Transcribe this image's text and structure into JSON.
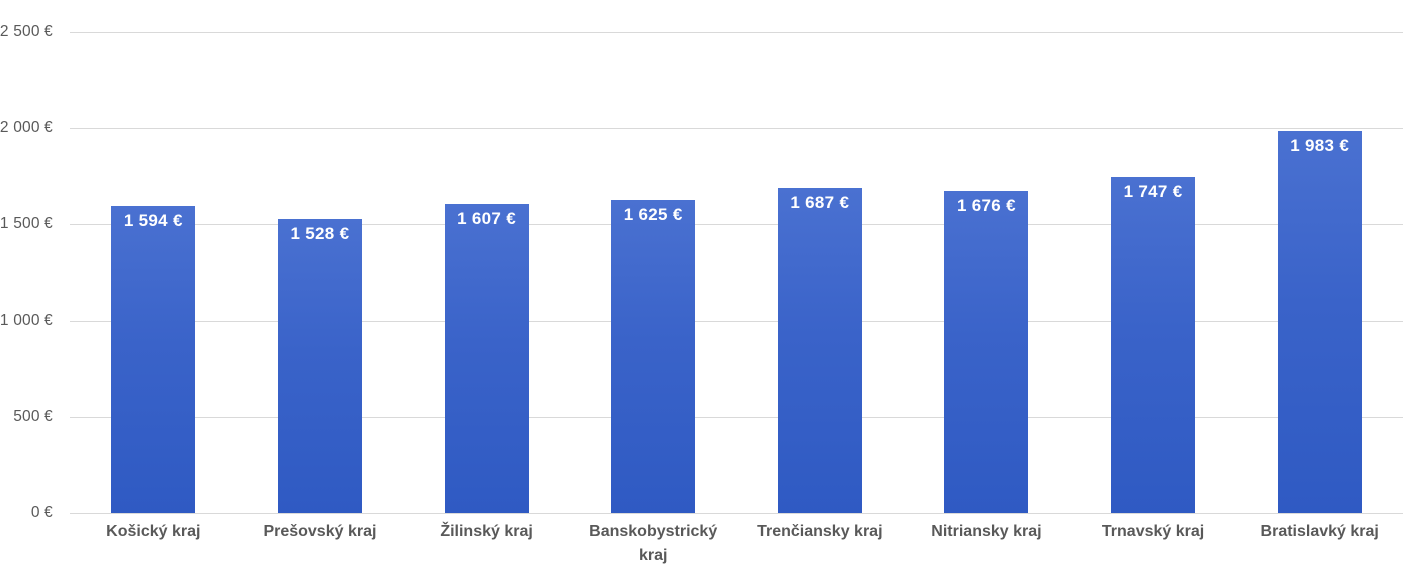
{
  "chart_data": {
    "type": "bar",
    "title": "",
    "xlabel": "",
    "ylabel": "",
    "categories": [
      "Košický kraj",
      "Prešovský kraj",
      "Žilinský kraj",
      "Banskobystrický kraj",
      "Trenčiansky kraj",
      "Nitriansky kraj",
      "Trnavský kraj",
      "Bratislavký kraj"
    ],
    "values": [
      1594,
      1528,
      1607,
      1625,
      1687,
      1676,
      1747,
      1983
    ],
    "value_labels": [
      "1 594 €",
      "1 528 €",
      "1 607 €",
      "1 625 €",
      "1 687 €",
      "1 676 €",
      "1 747 €",
      "1 983 €"
    ],
    "ylim": [
      0,
      2500
    ],
    "yticks": [
      {
        "value": 0,
        "label": "0 €"
      },
      {
        "value": 500,
        "label": "500 €"
      },
      {
        "value": 1000,
        "label": "1 000 €"
      },
      {
        "value": 1500,
        "label": "1 500 €"
      },
      {
        "value": 2000,
        "label": "2 000 €"
      },
      {
        "value": 2500,
        "label": "2 500 €"
      }
    ],
    "grid": true,
    "legend": "none",
    "colors": {
      "bar_top": "#4A71D1",
      "bar_bottom": "#2F5AC3",
      "gridline": "#D9D9D9",
      "tick_label": "#595959",
      "category_label": "#595959",
      "value_label": "#FFFFFF",
      "background": "#FFFFFF"
    }
  }
}
